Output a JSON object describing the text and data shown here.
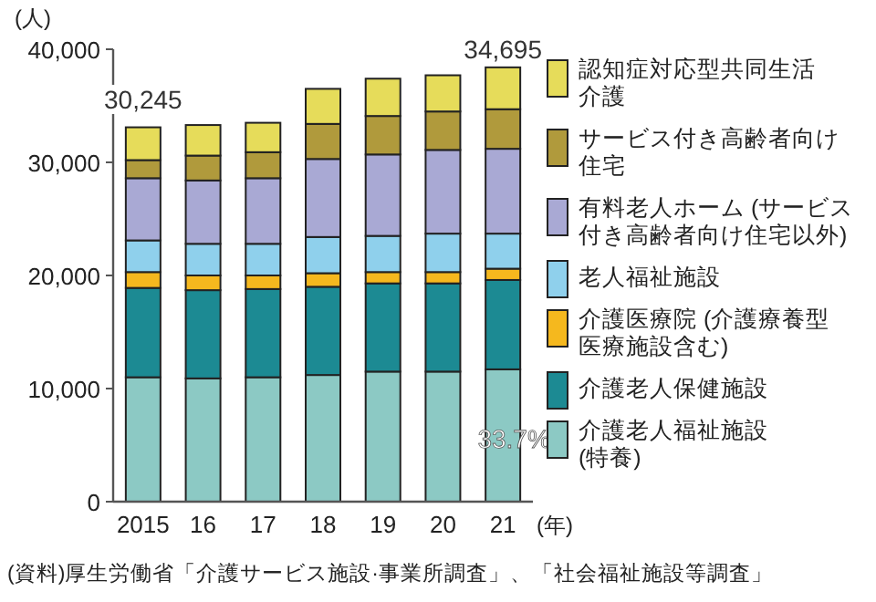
{
  "chart_data": {
    "type": "bar",
    "stacked": true,
    "ylabel": "(人)",
    "xlabel": "(年)",
    "categories": [
      "2015",
      "16",
      "17",
      "18",
      "19",
      "20",
      "21"
    ],
    "ylim": [
      0,
      40000
    ],
    "yticks": [
      {
        "value": 0,
        "label": "0"
      },
      {
        "value": 10000,
        "label": "10,000"
      },
      {
        "value": 20000,
        "label": "20,000"
      },
      {
        "value": 30000,
        "label": "30,000"
      },
      {
        "value": 40000,
        "label": "40,000"
      }
    ],
    "legend": "right",
    "grid": false,
    "series": [
      {
        "name": "介護老人福祉施設(特養)",
        "color": "#8cc9c4",
        "values": [
          11000,
          10900,
          11000,
          11200,
          11500,
          11500,
          11700
        ]
      },
      {
        "name": "介護老人保健施設",
        "color": "#1c8a93",
        "values": [
          7900,
          7800,
          7800,
          7800,
          7800,
          7800,
          7900
        ]
      },
      {
        "name": "介護医療院 (介護療養型医療施設含む)",
        "color": "#f5b81e",
        "values": [
          1400,
          1300,
          1200,
          1200,
          1000,
          1000,
          1000
        ]
      },
      {
        "name": "老人福祉施設",
        "color": "#8fd0ec",
        "values": [
          2800,
          2800,
          2800,
          3200,
          3200,
          3400,
          3100
        ]
      },
      {
        "name": "有料老人ホーム (サービス付き高齢者向け住宅以外)",
        "color": "#a9a9d4",
        "values": [
          5500,
          5600,
          5800,
          6900,
          7200,
          7400,
          7500
        ]
      },
      {
        "name": "サービス付き高齢者向け住宅",
        "color": "#b09a3c",
        "values": [
          1600,
          2200,
          2300,
          3100,
          3400,
          3400,
          3500
        ]
      },
      {
        "name": "認知症対応型共同生活介護",
        "color": "#e6dc5a",
        "values": [
          2900,
          2700,
          2600,
          3100,
          3300,
          3200,
          3700
        ]
      }
    ],
    "annotations": [
      {
        "text": "30,245",
        "x": "2015",
        "y": 30245
      },
      {
        "text": "34,695",
        "x": "21",
        "y": 34695
      },
      "33.7%",
      "(資料)厚生労働省「介護サービス施設·事業所調査」、「社会福祉施設等調査」"
    ]
  }
}
